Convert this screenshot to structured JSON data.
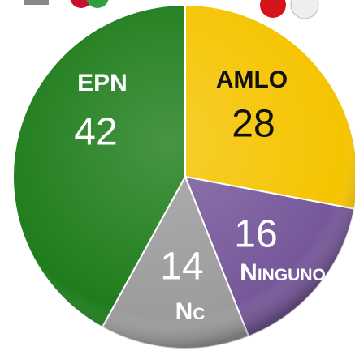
{
  "chart_data": {
    "type": "pie",
    "categories": [
      "AMLO",
      "Ninguno",
      "Nc",
      "EPN"
    ],
    "values": [
      28,
      16,
      14,
      42
    ],
    "colors": [
      "#f5c400",
      "#76589a",
      "#9c9c9c",
      "#1f7d1c"
    ]
  }
}
